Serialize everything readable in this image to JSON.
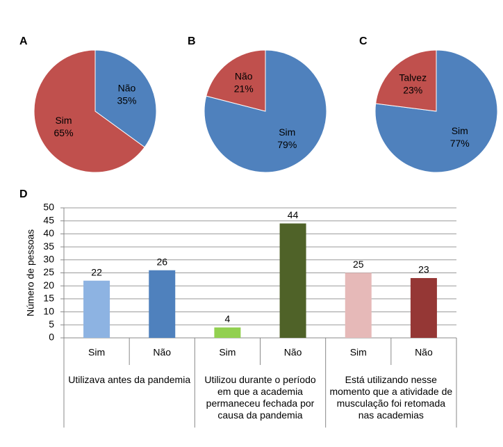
{
  "chart_data": [
    {
      "type": "pie",
      "title": "A",
      "categories": [
        "Não",
        "Sim"
      ],
      "values": [
        35,
        65
      ],
      "value_labels": [
        "35%",
        "65%"
      ],
      "colors": [
        "#4f81bd",
        "#c0504d"
      ]
    },
    {
      "type": "pie",
      "title": "B",
      "categories": [
        "Sim",
        "Não"
      ],
      "values": [
        79,
        21
      ],
      "value_labels": [
        "79%",
        "21%"
      ],
      "colors": [
        "#4f81bd",
        "#c0504d"
      ]
    },
    {
      "type": "pie",
      "title": "C",
      "categories": [
        "Sim",
        "Talvez"
      ],
      "values": [
        77,
        23
      ],
      "value_labels": [
        "77%",
        "23%"
      ],
      "colors": [
        "#4f81bd",
        "#c0504d"
      ]
    },
    {
      "type": "bar",
      "title": "D",
      "y_label": "Número de pessoas",
      "categories": [
        "Sim",
        "Não",
        "Sim",
        "Não",
        "Sim",
        "Não"
      ],
      "groups": [
        "Utilizava antes da pandemia",
        "Utilizou durante o período em que a academia permaneceu fechada por causa da pandemia",
        "Está utilizando nesse momento que a atividade de musculação foi retomada nas academias"
      ],
      "values": [
        22,
        26,
        4,
        44,
        25,
        23
      ],
      "colors": [
        "#8db3e2",
        "#4f81bd",
        "#92d050",
        "#4f6228",
        "#e6b9b8",
        "#953735"
      ],
      "ylim": [
        0,
        50
      ],
      "yticks": [
        0,
        5,
        10,
        15,
        20,
        25,
        30,
        35,
        40,
        45,
        50
      ],
      "grid": true
    }
  ]
}
